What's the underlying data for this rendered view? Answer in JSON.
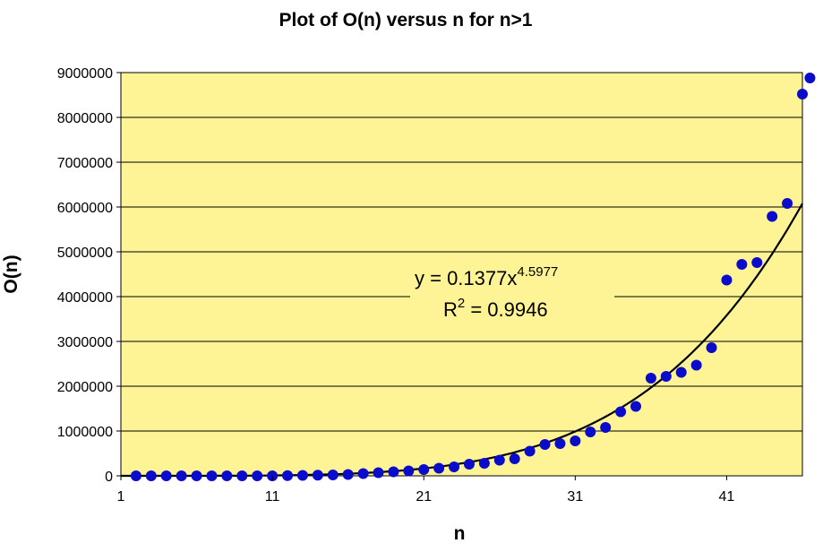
{
  "chart_data": {
    "type": "scatter",
    "title": "Plot of O(n) versus n for n>1",
    "xlabel": "n",
    "ylabel": "O(n)",
    "xlim": [
      1,
      46
    ],
    "ylim": [
      0,
      9000000
    ],
    "x_ticks": [
      "1",
      "11",
      "21",
      "31",
      "41"
    ],
    "y_ticks": [
      "0",
      "1000000",
      "2000000",
      "3000000",
      "4000000",
      "5000000",
      "6000000",
      "7000000",
      "8000000",
      "9000000"
    ],
    "grid": "horizontal",
    "colors": {
      "plot_bg": "#fef395",
      "marker": "#0b0bcc",
      "trendline": "#000000",
      "gridline": "#000000"
    },
    "series": [
      {
        "x": [
          2,
          3,
          4,
          5,
          6,
          7,
          8,
          9,
          10,
          11,
          12,
          13,
          14,
          15,
          16,
          17,
          18,
          19,
          20,
          21,
          22,
          23,
          24,
          25,
          26,
          27,
          28,
          29,
          30,
          31,
          32,
          33,
          34,
          35,
          36,
          37,
          38,
          39,
          40,
          41,
          42,
          43,
          44,
          45,
          46
        ],
        "y": [
          0,
          0,
          0,
          0,
          0,
          0,
          0,
          0,
          0,
          0,
          5000,
          10000,
          15000,
          20000,
          30000,
          50000,
          70000,
          90000,
          110000,
          140000,
          170000,
          200000,
          260000,
          280000,
          350000,
          380000,
          550000,
          700000,
          720000,
          780000,
          980000,
          1080000,
          1430000,
          1550000,
          2180000,
          2220000,
          2310000,
          2470000,
          2860000,
          4370000,
          4720000,
          4760000,
          5790000,
          6080000,
          8520000
        ]
      }
    ],
    "x_last": 46.5,
    "y_last": 8880000,
    "trendline": {
      "type": "power",
      "coefficient": 0.1377,
      "exponent": 4.5977,
      "equation_prefix": "y = 0.1377x",
      "equation_exponent": "4.5977",
      "r2_prefix": "R",
      "r2_exponent": "2",
      "r2_value": " = 0.9946"
    }
  }
}
